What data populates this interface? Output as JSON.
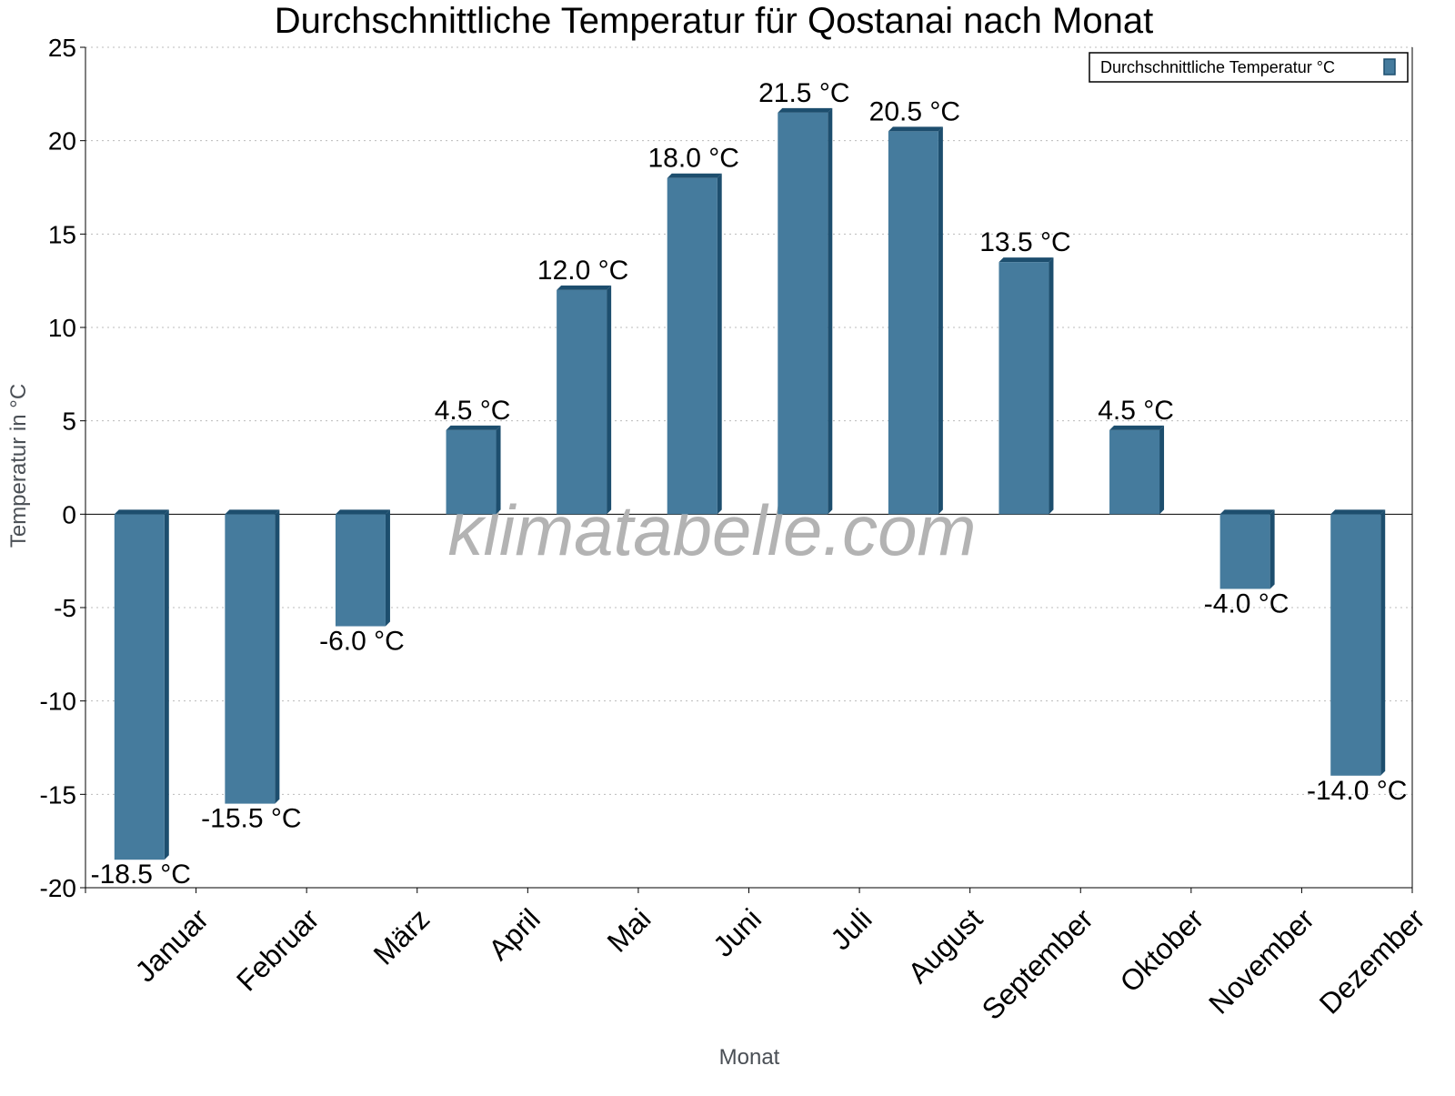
{
  "chart_data": {
    "type": "bar",
    "title": "Durchschnittliche Temperatur für Qostanai nach Monat",
    "xlabel": "Monat",
    "ylabel": "Temperatur in °C",
    "categories": [
      "Januar",
      "Februar",
      "März",
      "April",
      "Mai",
      "Juni",
      "Juli",
      "August",
      "September",
      "Oktober",
      "November",
      "Dezember"
    ],
    "series": [
      {
        "name": "Durchschnittliche Temperatur °C",
        "values": [
          -18.5,
          -15.5,
          -6.0,
          4.5,
          12.0,
          18.0,
          21.5,
          20.5,
          13.5,
          4.5,
          -4.0,
          -14.0
        ]
      }
    ],
    "value_suffix": " °C",
    "ylim": [
      -20,
      25
    ],
    "yticks": [
      25,
      20,
      15,
      10,
      5,
      0,
      -5,
      -10,
      -15,
      -20
    ],
    "grid": true,
    "legend": "top-right",
    "watermark": "klimatabelle.com",
    "colors": {
      "bar": "#457b9d",
      "bar_side": "#1d4e6e",
      "grid": "#bbbbbb",
      "axis_label": "#4a4f55"
    }
  }
}
